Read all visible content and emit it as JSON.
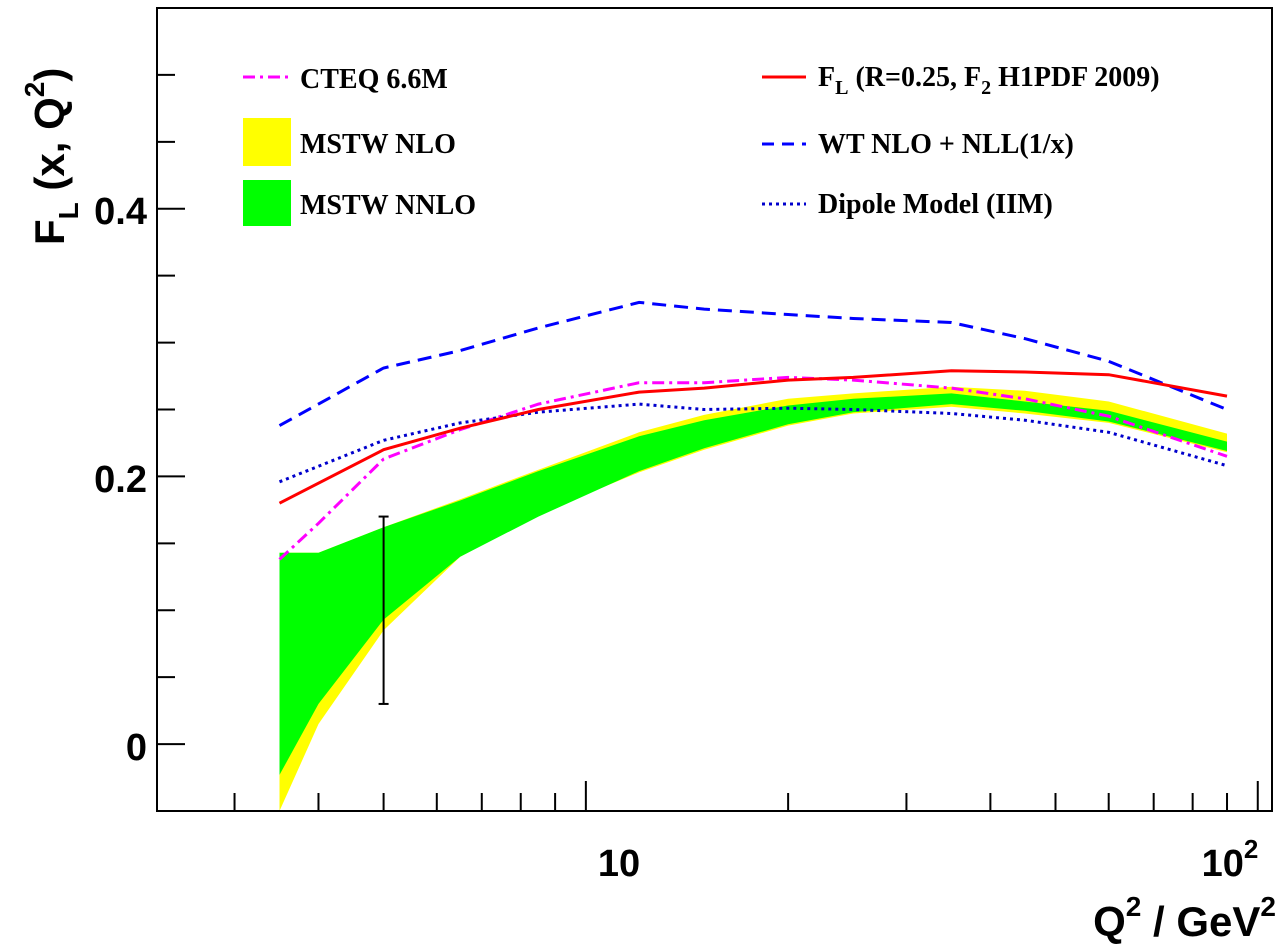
{
  "chart_data": {
    "type": "line",
    "xscale": "log",
    "xlim": [
      2.3,
      105
    ],
    "ylim": [
      -0.05,
      0.55
    ],
    "grid": false,
    "legend_placement": "top",
    "axes": {
      "xlabel": {
        "main": "Q",
        "sup1": "2",
        "mid": " / GeV",
        "sup2": "2"
      },
      "ylabel": {
        "main": "F",
        "sub": "L",
        "mid": " (x, Q",
        "sup": "2",
        "end": ")"
      },
      "y_ticks": [
        {
          "value": 0,
          "label": "0"
        },
        {
          "value": 0.2,
          "label": "0.2"
        },
        {
          "value": 0.4,
          "label": "0.4"
        }
      ],
      "x_ticks": [
        {
          "value": 10,
          "label": "10"
        },
        {
          "value": 100,
          "label": "10",
          "sup": "2"
        }
      ]
    },
    "series": [
      {
        "name": "CTEQ 6.6M",
        "style": "dashdot",
        "color": "#ff00ff",
        "x": [
          3.5,
          4.0,
          5.0,
          6.5,
          8.5,
          12.0,
          15.0,
          20.0,
          25.0,
          35.0,
          45.0,
          60.0,
          90.0
        ],
        "y": [
          0.138,
          0.165,
          0.213,
          0.235,
          0.254,
          0.27,
          0.27,
          0.274,
          0.272,
          0.266,
          0.258,
          0.245,
          0.215
        ]
      },
      {
        "name": "F_L (R=0.25, F_2 H1PDF 2009)",
        "label_main": "F",
        "label_sub1": "L",
        "label_mid": " (R=0.25, F",
        "label_sub2": "2",
        "label_end": " H1PDF 2009)",
        "style": "solid",
        "color": "#ff0000",
        "x": [
          3.5,
          5.0,
          6.5,
          8.5,
          12.0,
          15.0,
          20.0,
          25.0,
          35.0,
          45.0,
          60.0,
          90.0
        ],
        "y": [
          0.18,
          0.22,
          0.236,
          0.25,
          0.263,
          0.266,
          0.272,
          0.274,
          0.279,
          0.278,
          0.276,
          0.26
        ]
      },
      {
        "name": "WT NLO + NLL(1/x)",
        "style": "dashed",
        "color": "#0000ff",
        "x": [
          3.5,
          5.0,
          6.5,
          8.5,
          12.0,
          15.0,
          20.0,
          25.0,
          35.0,
          45.0,
          60.0,
          90.0
        ],
        "y": [
          0.238,
          0.281,
          0.294,
          0.311,
          0.33,
          0.325,
          0.321,
          0.318,
          0.315,
          0.303,
          0.286,
          0.25
        ]
      },
      {
        "name": "Dipole Model (IIM)",
        "style": "dotted",
        "color": "#0000cc",
        "x": [
          3.5,
          5.0,
          6.5,
          8.5,
          12.0,
          15.0,
          20.0,
          25.0,
          35.0,
          45.0,
          60.0,
          90.0
        ],
        "y": [
          0.196,
          0.227,
          0.24,
          0.248,
          0.254,
          0.25,
          0.251,
          0.25,
          0.247,
          0.242,
          0.233,
          0.208
        ]
      }
    ],
    "bands": [
      {
        "name": "MSTW NLO",
        "color": "#ffff00",
        "x": [
          3.5,
          4.0,
          5.0,
          6.5,
          8.5,
          12.0,
          15.0,
          20.0,
          25.0,
          35.0,
          45.0,
          60.0,
          90.0
        ],
        "upper": [
          0.143,
          0.143,
          0.162,
          0.183,
          0.205,
          0.233,
          0.246,
          0.258,
          0.262,
          0.267,
          0.264,
          0.256,
          0.232
        ],
        "lower": [
          -0.05,
          0.015,
          0.085,
          0.14,
          0.172,
          0.203,
          0.22,
          0.238,
          0.247,
          0.252,
          0.247,
          0.24,
          0.218
        ]
      },
      {
        "name": "MSTW NNLO",
        "color": "#00ff00",
        "x": [
          3.5,
          4.0,
          5.0,
          6.5,
          8.5,
          12.0,
          15.0,
          20.0,
          25.0,
          35.0,
          45.0,
          60.0,
          90.0
        ],
        "upper": [
          0.143,
          0.143,
          0.162,
          0.182,
          0.204,
          0.23,
          0.242,
          0.253,
          0.258,
          0.262,
          0.256,
          0.249,
          0.226
        ],
        "lower": [
          -0.023,
          0.03,
          0.093,
          0.14,
          0.17,
          0.204,
          0.221,
          0.239,
          0.248,
          0.254,
          0.249,
          0.241,
          0.219
        ]
      }
    ],
    "errorbar": {
      "x": 5.0,
      "y": 0.1,
      "ylow": 0.03,
      "yhigh": 0.17
    }
  }
}
